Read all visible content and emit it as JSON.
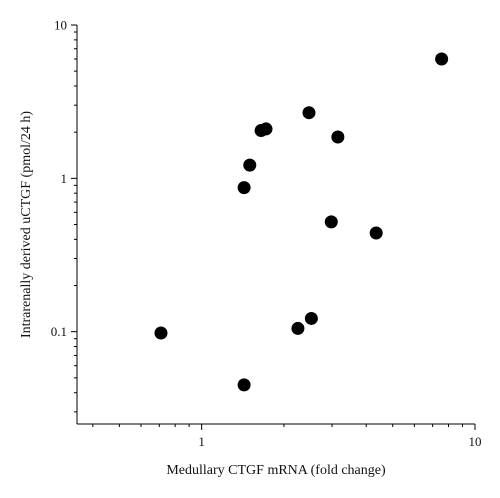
{
  "chart_data": {
    "type": "scatter",
    "title": "",
    "xlabel": "Medullary CTGF mRNA (fold change)",
    "ylabel": "Intrarenally derived uCTGF (pmol/24 h)",
    "x_scale": "log",
    "y_scale": "log",
    "xlim": [
      0.35,
      10
    ],
    "ylim": [
      0.025,
      10
    ],
    "x_ticks": [
      {
        "value": 1,
        "label": "1"
      },
      {
        "value": 10,
        "label": "10"
      }
    ],
    "y_ticks": [
      {
        "value": 0.1,
        "label": "0.1"
      },
      {
        "value": 1,
        "label": "1"
      },
      {
        "value": 10,
        "label": "10"
      }
    ],
    "grid": false,
    "legend": "none",
    "marker_color": "#000000",
    "points": [
      {
        "x": 0.71,
        "y": 0.098
      },
      {
        "x": 1.43,
        "y": 0.045
      },
      {
        "x": 1.43,
        "y": 0.87
      },
      {
        "x": 1.5,
        "y": 1.22
      },
      {
        "x": 1.65,
        "y": 2.05
      },
      {
        "x": 1.72,
        "y": 2.1
      },
      {
        "x": 2.25,
        "y": 0.105
      },
      {
        "x": 2.52,
        "y": 0.122
      },
      {
        "x": 2.47,
        "y": 2.68
      },
      {
        "x": 2.98,
        "y": 0.52
      },
      {
        "x": 3.15,
        "y": 1.86
      },
      {
        "x": 4.35,
        "y": 0.44
      },
      {
        "x": 7.55,
        "y": 6.0
      }
    ]
  }
}
